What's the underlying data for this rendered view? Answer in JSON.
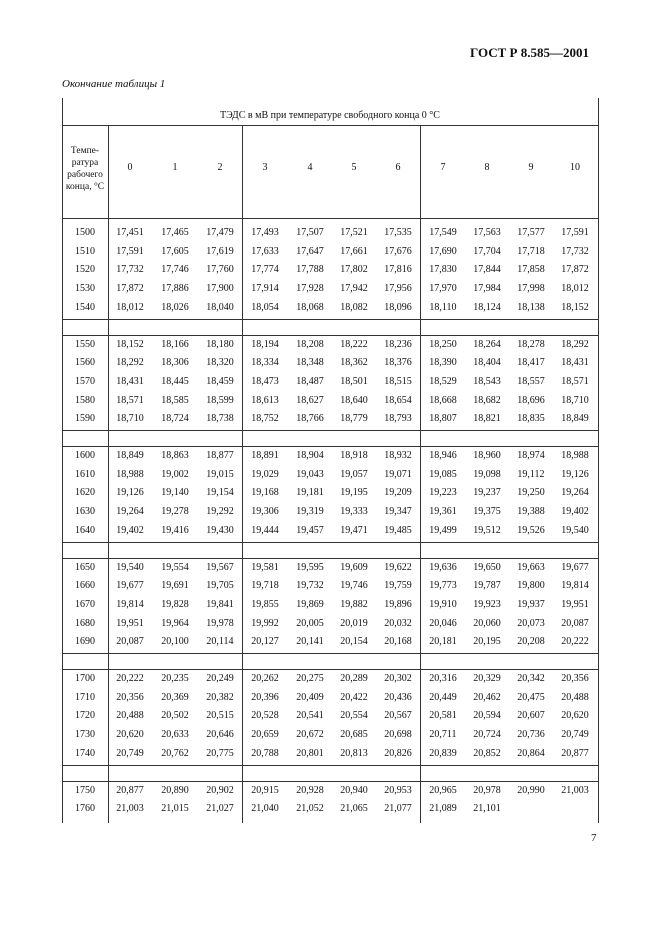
{
  "header": {
    "standard": "ГОСТ Р 8.585—2001"
  },
  "caption": "Окончание таблицы 1",
  "table": {
    "title": "ТЭДС в мВ при температуре свободного конца 0 °С",
    "row_header": "Темпе-ратура рабочего конца, °С",
    "columns": [
      "0",
      "1",
      "2",
      "3",
      "4",
      "5",
      "6",
      "7",
      "8",
      "9",
      "10"
    ],
    "rows": [
      {
        "temperature": "1500",
        "values": [
          "17,451",
          "17,465",
          "17,479",
          "17,493",
          "17,507",
          "17,521",
          "17,535",
          "17,549",
          "17,563",
          "17,577",
          "17,591"
        ]
      },
      {
        "temperature": "1510",
        "values": [
          "17,591",
          "17,605",
          "17,619",
          "17,633",
          "17,647",
          "17,661",
          "17,676",
          "17,690",
          "17,704",
          "17,718",
          "17,732"
        ]
      },
      {
        "temperature": "1520",
        "values": [
          "17,732",
          "17,746",
          "17,760",
          "17,774",
          "17,788",
          "17,802",
          "17,816",
          "17,830",
          "17,844",
          "17,858",
          "17,872"
        ]
      },
      {
        "temperature": "1530",
        "values": [
          "17,872",
          "17,886",
          "17,900",
          "17,914",
          "17,928",
          "17,942",
          "17,956",
          "17,970",
          "17,984",
          "17,998",
          "18,012"
        ]
      },
      {
        "temperature": "1540",
        "values": [
          "18,012",
          "18,026",
          "18,040",
          "18,054",
          "18,068",
          "18,082",
          "18,096",
          "18,110",
          "18,124",
          "18,138",
          "18,152"
        ]
      },
      {
        "temperature": "1550",
        "values": [
          "18,152",
          "18,166",
          "18,180",
          "18,194",
          "18,208",
          "18,222",
          "18,236",
          "18,250",
          "18,264",
          "18,278",
          "18,292"
        ]
      },
      {
        "temperature": "1560",
        "values": [
          "18,292",
          "18,306",
          "18,320",
          "18,334",
          "18,348",
          "18,362",
          "18,376",
          "18,390",
          "18,404",
          "18,417",
          "18,431"
        ]
      },
      {
        "temperature": "1570",
        "values": [
          "18,431",
          "18,445",
          "18,459",
          "18,473",
          "18,487",
          "18,501",
          "18,515",
          "18,529",
          "18,543",
          "18,557",
          "18,571"
        ]
      },
      {
        "temperature": "1580",
        "values": [
          "18,571",
          "18,585",
          "18,599",
          "18,613",
          "18,627",
          "18,640",
          "18,654",
          "18,668",
          "18,682",
          "18,696",
          "18,710"
        ]
      },
      {
        "temperature": "1590",
        "values": [
          "18,710",
          "18,724",
          "18,738",
          "18,752",
          "18,766",
          "18,779",
          "18,793",
          "18,807",
          "18,821",
          "18,835",
          "18,849"
        ]
      },
      {
        "temperature": "1600",
        "values": [
          "18,849",
          "18,863",
          "18,877",
          "18,891",
          "18,904",
          "18,918",
          "18,932",
          "18,946",
          "18,960",
          "18,974",
          "18,988"
        ]
      },
      {
        "temperature": "1610",
        "values": [
          "18,988",
          "19,002",
          "19,015",
          "19,029",
          "19,043",
          "19,057",
          "19,071",
          "19,085",
          "19,098",
          "19,112",
          "19,126"
        ]
      },
      {
        "temperature": "1620",
        "values": [
          "19,126",
          "19,140",
          "19,154",
          "19,168",
          "19,181",
          "19,195",
          "19,209",
          "19,223",
          "19,237",
          "19,250",
          "19,264"
        ]
      },
      {
        "temperature": "1630",
        "values": [
          "19,264",
          "19,278",
          "19,292",
          "19,306",
          "19,319",
          "19,333",
          "19,347",
          "19,361",
          "19,375",
          "19,388",
          "19,402"
        ]
      },
      {
        "temperature": "1640",
        "values": [
          "19,402",
          "19,416",
          "19,430",
          "19,444",
          "19,457",
          "19,471",
          "19,485",
          "19,499",
          "19,512",
          "19,526",
          "19,540"
        ]
      },
      {
        "temperature": "1650",
        "values": [
          "19,540",
          "19,554",
          "19,567",
          "19,581",
          "19,595",
          "19,609",
          "19,622",
          "19,636",
          "19,650",
          "19,663",
          "19,677"
        ]
      },
      {
        "temperature": "1660",
        "values": [
          "19,677",
          "19,691",
          "19,705",
          "19,718",
          "19,732",
          "19,746",
          "19,759",
          "19,773",
          "19,787",
          "19,800",
          "19,814"
        ]
      },
      {
        "temperature": "1670",
        "values": [
          "19,814",
          "19,828",
          "19,841",
          "19,855",
          "19,869",
          "19,882",
          "19,896",
          "19,910",
          "19,923",
          "19,937",
          "19,951"
        ]
      },
      {
        "temperature": "1680",
        "values": [
          "19,951",
          "19,964",
          "19,978",
          "19,992",
          "20,005",
          "20,019",
          "20,032",
          "20,046",
          "20,060",
          "20,073",
          "20,087"
        ]
      },
      {
        "temperature": "1690",
        "values": [
          "20,087",
          "20,100",
          "20,114",
          "20,127",
          "20,141",
          "20,154",
          "20,168",
          "20,181",
          "20,195",
          "20,208",
          "20,222"
        ]
      },
      {
        "temperature": "1700",
        "values": [
          "20,222",
          "20,235",
          "20,249",
          "20,262",
          "20,275",
          "20,289",
          "20,302",
          "20,316",
          "20,329",
          "20,342",
          "20,356"
        ]
      },
      {
        "temperature": "1710",
        "values": [
          "20,356",
          "20,369",
          "20,382",
          "20,396",
          "20,409",
          "20,422",
          "20,436",
          "20,449",
          "20,462",
          "20,475",
          "20,488"
        ]
      },
      {
        "temperature": "1720",
        "values": [
          "20,488",
          "20,502",
          "20,515",
          "20,528",
          "20,541",
          "20,554",
          "20,567",
          "20,581",
          "20,594",
          "20,607",
          "20,620"
        ]
      },
      {
        "temperature": "1730",
        "values": [
          "20,620",
          "20,633",
          "20,646",
          "20,659",
          "20,672",
          "20,685",
          "20,698",
          "20,711",
          "20,724",
          "20,736",
          "20,749"
        ]
      },
      {
        "temperature": "1740",
        "values": [
          "20,749",
          "20,762",
          "20,775",
          "20,788",
          "20,801",
          "20,813",
          "20,826",
          "20,839",
          "20,852",
          "20,864",
          "20,877"
        ]
      },
      {
        "temperature": "1750",
        "values": [
          "20,877",
          "20,890",
          "20,902",
          "20,915",
          "20,928",
          "20,940",
          "20,953",
          "20,965",
          "20,978",
          "20,990",
          "21,003"
        ]
      },
      {
        "temperature": "1760",
        "values": [
          "21,003",
          "21,015",
          "21,027",
          "21,040",
          "21,052",
          "21,065",
          "21,077",
          "21,089",
          "21,101"
        ]
      }
    ]
  },
  "footer": {
    "page_number": "7"
  }
}
